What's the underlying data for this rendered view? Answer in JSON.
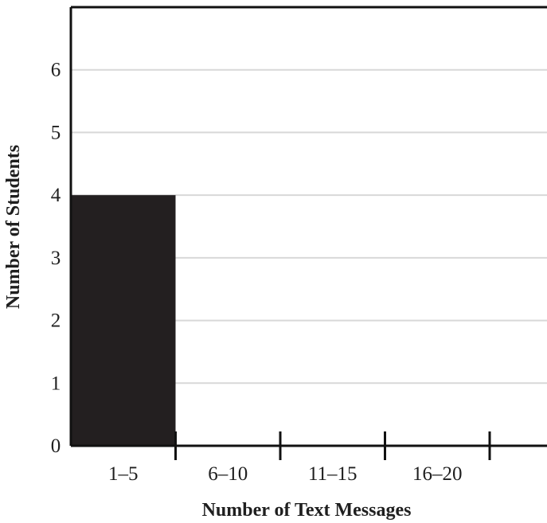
{
  "chart_data": {
    "type": "bar",
    "categories": [
      "1–5",
      "6–10",
      "11–15",
      "16–20"
    ],
    "values": [
      4,
      0,
      0,
      0
    ],
    "xlabel": "Number of Text Messages",
    "ylabel": "Number of Students",
    "ylim": [
      0,
      7
    ],
    "yticks": [
      0,
      1,
      2,
      3,
      4,
      5,
      6
    ],
    "grid": true,
    "colors": {
      "bar": "#231f20",
      "axis": "#111111",
      "grid": "#d8d8d8",
      "text": "#1f1f1f"
    }
  }
}
